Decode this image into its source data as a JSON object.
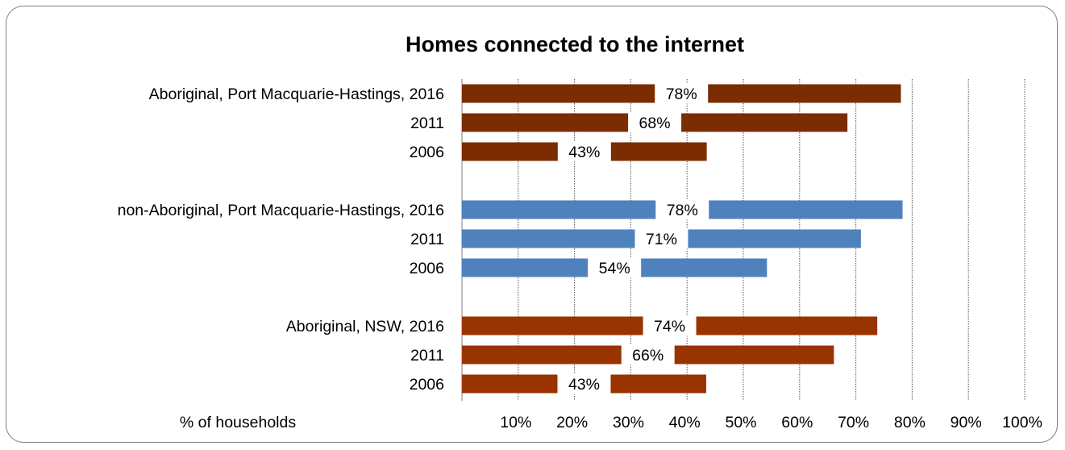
{
  "chart_data": {
    "type": "bar",
    "orientation": "horizontal",
    "title": "Homes connected to the internet",
    "xlabel": "% of households",
    "xlim": [
      0,
      100
    ],
    "x_ticks": [
      "10%",
      "20%",
      "30%",
      "40%",
      "50%",
      "60%",
      "70%",
      "80%",
      "90%",
      "100%"
    ],
    "grid": "vertical dotted",
    "groups": [
      {
        "color": "#7b2c00",
        "bars": [
          {
            "label": "Aboriginal, Port Macquarie-Hastings, 2016",
            "value": 78,
            "value_label": "78%"
          },
          {
            "label": "2011",
            "value": 68.5,
            "value_label": "68%"
          },
          {
            "label": "2006",
            "value": 43.5,
            "value_label": "43%"
          }
        ]
      },
      {
        "color": "#4f81bd",
        "bars": [
          {
            "label": "non-Aboriginal, Port Macquarie-Hastings, 2016",
            "value": 78.3,
            "value_label": "78%"
          },
          {
            "label": "2011",
            "value": 70.9,
            "value_label": "71%"
          },
          {
            "label": "2006",
            "value": 54.2,
            "value_label": "54%"
          }
        ]
      },
      {
        "color": "#993300",
        "bars": [
          {
            "label": "Aboriginal, NSW, 2016",
            "value": 73.8,
            "value_label": "74%"
          },
          {
            "label": "2011",
            "value": 66.1,
            "value_label": "66%"
          },
          {
            "label": "2006",
            "value": 43.4,
            "value_label": "43%"
          }
        ]
      }
    ]
  }
}
